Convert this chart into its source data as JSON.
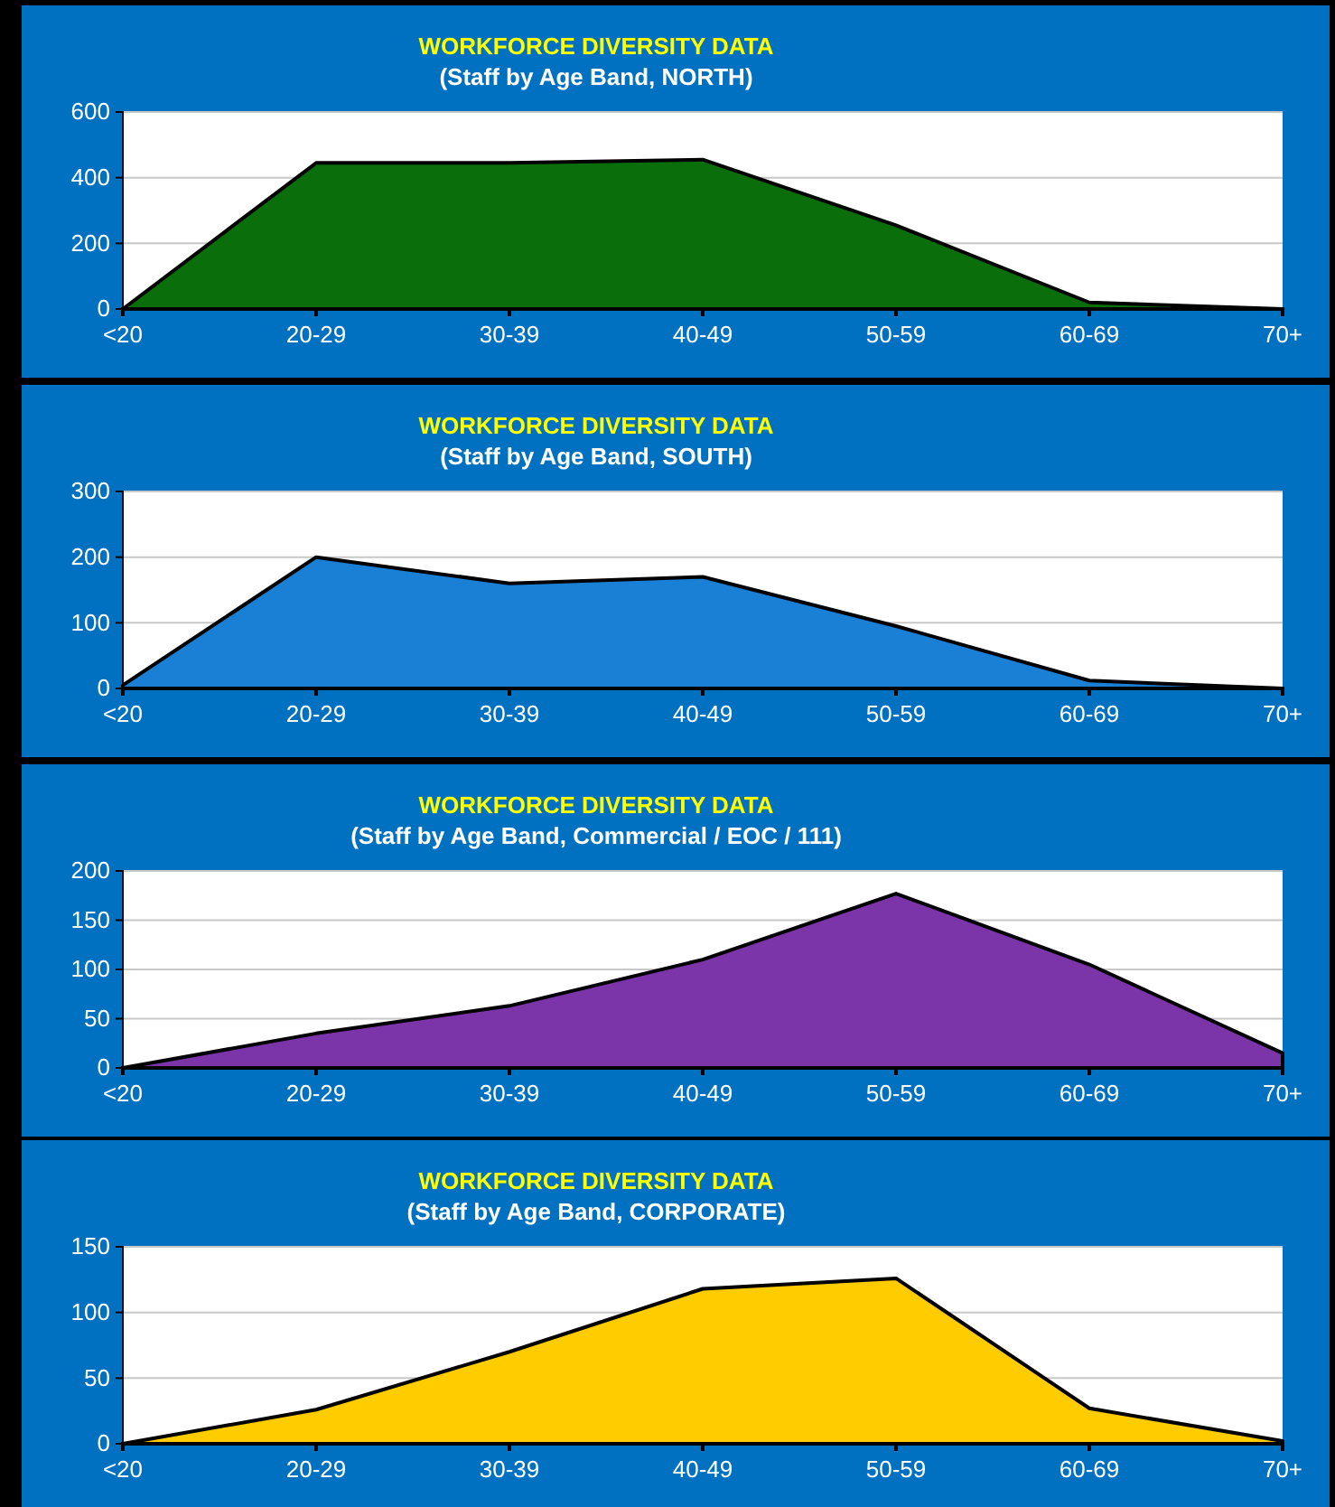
{
  "chart_data": [
    {
      "type": "area",
      "title": "WORKFORCE DIVERSITY DATA",
      "subtitle": "(Staff by Age Band, NORTH)",
      "categories": [
        "<20",
        "20-29",
        "30-39",
        "40-49",
        "50-59",
        "60-69",
        "70+"
      ],
      "values": [
        0,
        445,
        445,
        455,
        255,
        20,
        0
      ],
      "color": "#0a6e0a",
      "ylim": [
        0,
        600
      ],
      "yticks": [
        0,
        200,
        400,
        600
      ],
      "grid": "y"
    },
    {
      "type": "area",
      "title": "WORKFORCE DIVERSITY DATA",
      "subtitle": "(Staff by Age Band, SOUTH)",
      "categories": [
        "<20",
        "20-29",
        "30-39",
        "40-49",
        "50-59",
        "60-69",
        "70+"
      ],
      "values": [
        5,
        200,
        160,
        170,
        95,
        12,
        0
      ],
      "color": "#1a80d6",
      "ylim": [
        0,
        300
      ],
      "yticks": [
        0,
        100,
        200,
        300
      ],
      "grid": "y"
    },
    {
      "type": "area",
      "title": "WORKFORCE DIVERSITY DATA",
      "subtitle": "(Staff by Age Band, Commercial / EOC / 111)",
      "categories": [
        "<20",
        "20-29",
        "30-39",
        "40-49",
        "50-59",
        "60-69",
        "70+"
      ],
      "values": [
        0,
        35,
        63,
        110,
        177,
        105,
        15
      ],
      "color": "#7b35a8",
      "ylim": [
        0,
        200
      ],
      "yticks": [
        0,
        50,
        100,
        150,
        200
      ],
      "grid": "y"
    },
    {
      "type": "area",
      "title": "WORKFORCE DIVERSITY DATA",
      "subtitle": "(Staff by Age Band, CORPORATE)",
      "categories": [
        "<20",
        "20-29",
        "30-39",
        "40-49",
        "50-59",
        "60-69",
        "70+"
      ],
      "values": [
        0,
        26,
        70,
        118,
        126,
        27,
        2
      ],
      "color": "#ffcc00",
      "ylim": [
        0,
        150
      ],
      "yticks": [
        0,
        50,
        100,
        150
      ],
      "grid": "y"
    }
  ]
}
